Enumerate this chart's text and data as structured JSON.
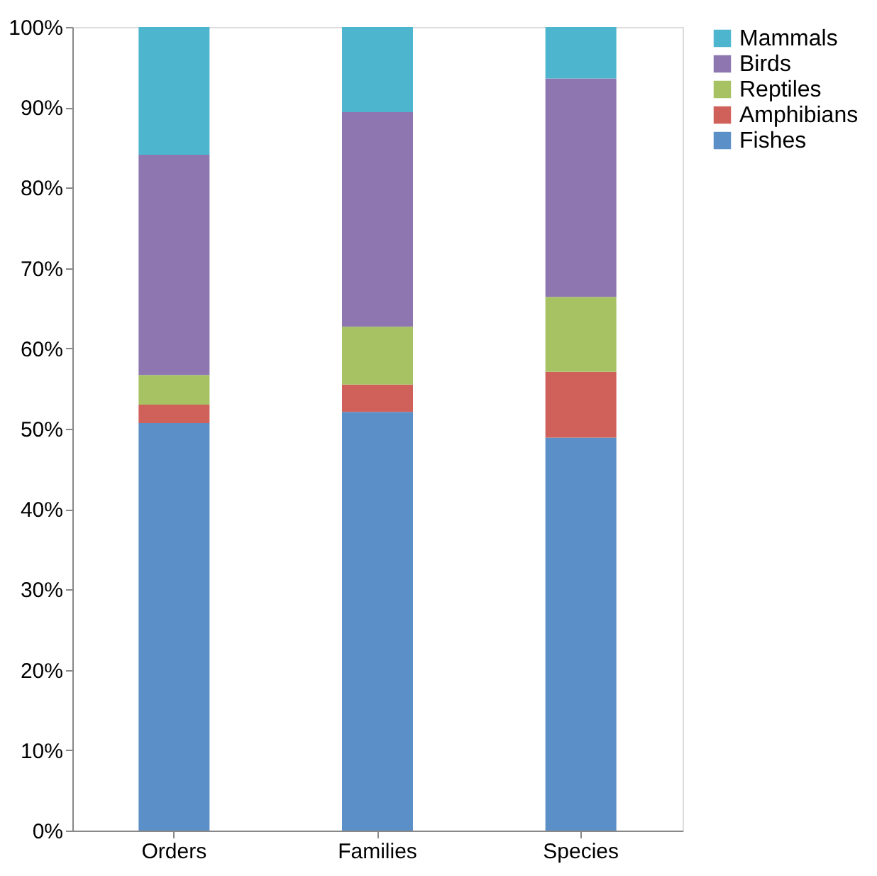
{
  "chart_data": {
    "type": "bar",
    "stacked": true,
    "categories": [
      "Orders",
      "Families",
      "Species"
    ],
    "series": [
      {
        "name": "Fishes",
        "color": "#5a8fc8",
        "values": [
          50.7,
          52.1,
          48.9
        ]
      },
      {
        "name": "Amphibians",
        "color": "#d0605a",
        "values": [
          2.3,
          3.4,
          8.2
        ]
      },
      {
        "name": "Reptiles",
        "color": "#a6c262",
        "values": [
          3.7,
          7.2,
          9.3
        ]
      },
      {
        "name": "Birds",
        "color": "#8e77b1",
        "values": [
          27.4,
          26.7,
          27.2
        ]
      },
      {
        "name": "Mammals",
        "color": "#4eb5cf",
        "values": [
          15.9,
          10.6,
          6.4
        ]
      }
    ],
    "ylim": [
      0,
      100
    ],
    "yticks": [
      {
        "value": 0,
        "label": "0%"
      },
      {
        "value": 10,
        "label": "10%"
      },
      {
        "value": 20,
        "label": "20%"
      },
      {
        "value": 30,
        "label": "30%"
      },
      {
        "value": 40,
        "label": "40%"
      },
      {
        "value": 50,
        "label": "50%"
      },
      {
        "value": 60,
        "label": "60%"
      },
      {
        "value": 70,
        "label": "70%"
      },
      {
        "value": 80,
        "label": "80%"
      },
      {
        "value": 90,
        "label": "90%"
      },
      {
        "value": 100,
        "label": "100%"
      }
    ],
    "grid": false,
    "legend": "right"
  }
}
